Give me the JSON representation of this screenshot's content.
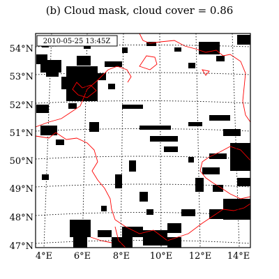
{
  "figure": {
    "title": "(b) Cloud mask, cloud cover = 0.86",
    "timestamp": "2010-05-25 13:45Z",
    "cloud_cover": 0.86
  },
  "axes": {
    "lat_labels": [
      "54°N",
      "53°N",
      "52°N",
      "51°N",
      "50°N",
      "49°N",
      "48°N",
      "47°N"
    ],
    "lon_labels": [
      "4°E",
      "6°E",
      "8°E",
      "10°E",
      "12°E",
      "14°E"
    ],
    "lat_range": [
      47,
      54.5
    ],
    "lon_range": [
      3.5,
      14.5
    ],
    "grid": "dotted"
  },
  "colors": {
    "cloud": "#000000",
    "clear": "#ffffff",
    "borders": "#ff0000",
    "grid": "#000000"
  }
}
